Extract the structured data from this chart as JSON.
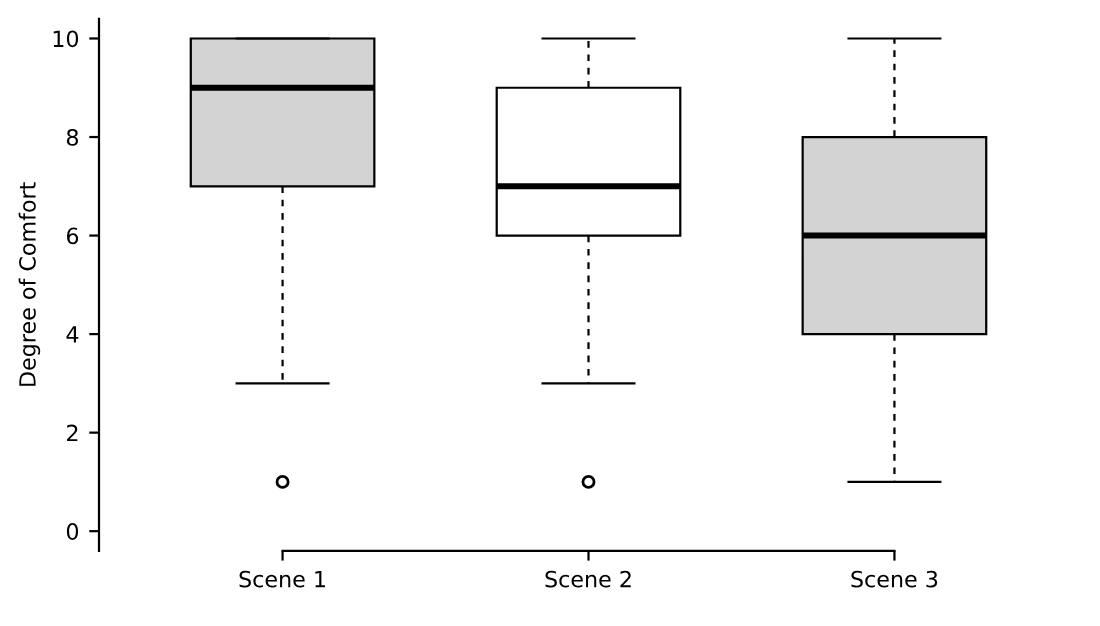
{
  "chart_data": {
    "type": "box",
    "ylabel": "Degree of Comfort",
    "categories": [
      "Scene 1",
      "Scene 2",
      "Scene 3"
    ],
    "boxes": [
      {
        "low": 3,
        "q1": 7,
        "median": 9,
        "q3": 10,
        "high": 10,
        "outliers": [
          1
        ]
      },
      {
        "low": 3,
        "q1": 6,
        "median": 7,
        "q3": 9,
        "high": 10,
        "outliers": [
          1
        ]
      },
      {
        "low": 1,
        "q1": 4,
        "median": 6,
        "q3": 8,
        "high": 10
      }
    ],
    "colors": [
      "#d3d3d3",
      "#ffffff",
      "#d3d3d3"
    ],
    "ylim": [
      -0.4,
      10.4
    ],
    "yticks": [
      0,
      2,
      4,
      6,
      8,
      10
    ],
    "grid": false
  }
}
